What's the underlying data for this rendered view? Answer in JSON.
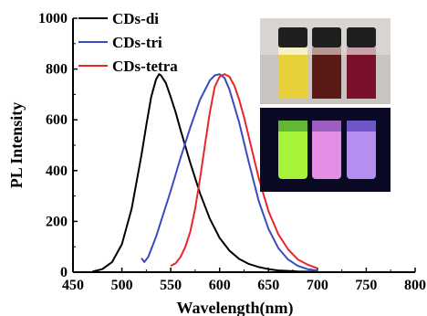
{
  "chart_data": {
    "type": "line",
    "title": "",
    "xlabel": "Wavelength(nm)",
    "ylabel": "PL Intensity",
    "xlim": [
      450,
      800
    ],
    "ylim": [
      0,
      1000
    ],
    "xticks": [
      450,
      500,
      550,
      600,
      650,
      700,
      750,
      800
    ],
    "yticks": [
      0,
      200,
      400,
      600,
      800,
      1000
    ],
    "grid": false,
    "legend": "top-left",
    "series": [
      {
        "name": "CDs-di",
        "color": "#000000",
        "x": [
          470,
          480,
          490,
          500,
          510,
          520,
          525,
          530,
          535,
          538,
          540,
          545,
          550,
          555,
          560,
          570,
          580,
          590,
          600,
          610,
          620,
          630,
          640,
          650,
          660,
          670,
          680,
          690,
          700
        ],
        "y": [
          2,
          12,
          40,
          110,
          250,
          460,
          580,
          690,
          760,
          780,
          775,
          745,
          690,
          630,
          560,
          430,
          310,
          210,
          135,
          85,
          52,
          32,
          20,
          12,
          7,
          5,
          3,
          2,
          1
        ]
      },
      {
        "name": "CDs-tri",
        "color": "#3a4bbf",
        "x": [
          520,
          523,
          527,
          530,
          535,
          540,
          550,
          560,
          570,
          580,
          590,
          595,
          600,
          605,
          610,
          620,
          630,
          640,
          650,
          660,
          670,
          680,
          690,
          700
        ],
        "y": [
          55,
          40,
          60,
          90,
          140,
          200,
          320,
          450,
          570,
          680,
          755,
          775,
          780,
          765,
          720,
          590,
          430,
          280,
          170,
          95,
          50,
          25,
          12,
          6
        ]
      },
      {
        "name": "CDs-tetra",
        "color": "#e8262a",
        "x": [
          550,
          555,
          560,
          565,
          570,
          575,
          580,
          585,
          590,
          595,
          600,
          605,
          610,
          615,
          620,
          625,
          630,
          640,
          650,
          660,
          670,
          680,
          690,
          700
        ],
        "y": [
          25,
          35,
          60,
          100,
          160,
          250,
          370,
          500,
          630,
          730,
          770,
          780,
          770,
          735,
          680,
          610,
          530,
          370,
          240,
          150,
          90,
          50,
          30,
          15
        ]
      }
    ]
  },
  "inset": {
    "top_photo": [
      "yellow solution vial",
      "dark red-brown solution vial",
      "dark crimson solution vial"
    ],
    "bottom_photo": [
      "green fluorescence vial",
      "pink fluorescence vial",
      "violet fluorescence vial"
    ]
  }
}
